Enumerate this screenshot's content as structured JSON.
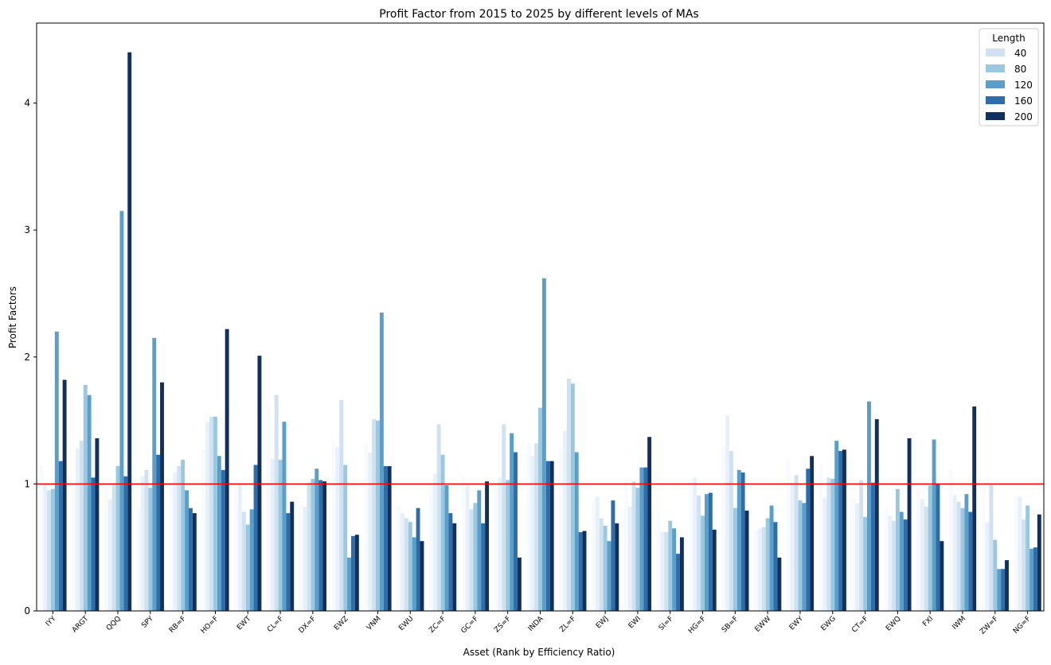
{
  "chart_data": {
    "type": "bar",
    "title": "Profit Factor from 2015 to 2025 by different levels of MAs",
    "xlabel": "Asset (Rank by Efficiency Ratio)",
    "ylabel": "Profit Factors",
    "ylim": [
      0,
      4.63
    ],
    "yticks": [
      0,
      1,
      2,
      3,
      4
    ],
    "reference_line": {
      "y": 1.0,
      "color": "#ff0000"
    },
    "legend": {
      "title": "Length",
      "placement": "top-right"
    },
    "categories": [
      "IYY",
      "ARGT",
      "QQQ",
      "SPY",
      "RB=F",
      "HO=F",
      "EWT",
      "CL=F",
      "DX=F",
      "EWZ",
      "VNM",
      "EWU",
      "ZC=F",
      "GC=F",
      "ZS=F",
      "INDA",
      "ZL=F",
      "EWJ",
      "EWI",
      "SI=F",
      "HG=F",
      "SB=F",
      "EWW",
      "EWY",
      "EWG",
      "CT=F",
      "EWQ",
      "FXI",
      "IWM",
      "ZW=F",
      "NG=F"
    ],
    "series": [
      {
        "name": "40",
        "color": "#d0e1f2",
        "values": [
          0.95,
          1.34,
          1.0,
          1.11,
          1.14,
          1.53,
          0.78,
          1.7,
          1.01,
          1.66,
          1.51,
          0.73,
          1.47,
          0.8,
          1.47,
          1.32,
          1.83,
          0.73,
          1.02,
          0.62,
          0.91,
          1.26,
          0.66,
          1.07,
          1.05,
          1.03,
          0.71,
          0.82,
          0.86,
          0.99,
          0.72
        ]
      },
      {
        "name": "80",
        "color": "#9ac8e0",
        "values": [
          0.96,
          1.78,
          1.14,
          0.97,
          1.19,
          1.53,
          0.68,
          1.19,
          1.04,
          1.15,
          1.5,
          0.7,
          1.23,
          0.85,
          1.03,
          1.6,
          1.79,
          0.67,
          0.97,
          0.71,
          0.75,
          0.81,
          0.73,
          0.87,
          1.04,
          0.74,
          0.96,
          0.99,
          0.81,
          0.56,
          0.83
        ]
      },
      {
        "name": "120",
        "color": "#5a9ec9",
        "values": [
          2.2,
          1.7,
          3.15,
          2.15,
          0.95,
          1.22,
          0.8,
          1.49,
          1.12,
          0.42,
          2.35,
          0.58,
          0.99,
          0.95,
          1.4,
          2.62,
          1.25,
          0.55,
          1.13,
          0.65,
          0.92,
          1.11,
          0.83,
          0.85,
          1.34,
          1.65,
          0.78,
          1.35,
          0.92,
          0.33,
          0.49
        ]
      },
      {
        "name": "160",
        "color": "#2d6ea8",
        "values": [
          1.18,
          1.05,
          1.06,
          1.23,
          0.81,
          1.11,
          1.15,
          0.77,
          1.03,
          0.59,
          1.14,
          0.81,
          0.77,
          0.69,
          1.25,
          1.18,
          0.62,
          0.87,
          1.13,
          0.45,
          0.93,
          1.09,
          0.7,
          1.12,
          1.26,
          1.01,
          0.72,
          1.0,
          0.78,
          0.33,
          0.5
        ]
      },
      {
        "name": "200",
        "color": "#12305e",
        "values": [
          1.82,
          1.36,
          4.4,
          1.8,
          0.77,
          2.22,
          2.01,
          0.86,
          1.02,
          0.6,
          1.14,
          0.55,
          0.69,
          1.02,
          0.42,
          1.18,
          0.63,
          0.69,
          1.37,
          0.58,
          0.64,
          0.79,
          0.42,
          1.22,
          1.27,
          1.51,
          1.36,
          0.55,
          1.61,
          0.4,
          0.76
        ]
      }
    ],
    "faint_series_colors": [
      "#f7fbff",
      "#e8f1fa"
    ],
    "faint_series": [
      [
        1.14,
        0.99,
        0.95,
        0.8,
        1.0,
        1.27,
        0.95,
        1.62,
        0.83,
        1.35,
        1.32,
        0.83,
        0.99,
        1.06,
        0.97,
        1.32,
        1.28,
        0.88,
        1.04,
        0.76,
        1.04,
        1.3,
        0.63,
        1.19,
        1.15,
        0.89,
        0.8,
        0.97,
        1.11,
        0.98,
        0.9
      ],
      [
        1.0,
        1.28,
        0.88,
        1.06,
        1.09,
        1.49,
        1.0,
        1.2,
        0.82,
        1.29,
        1.25,
        0.77,
        1.08,
        1.0,
        1.05,
        1.22,
        1.42,
        0.9,
        0.82,
        0.62,
        1.05,
        1.54,
        0.65,
        1.01,
        0.89,
        0.85,
        0.75,
        0.88,
        0.91,
        0.7,
        0.9
      ]
    ]
  }
}
